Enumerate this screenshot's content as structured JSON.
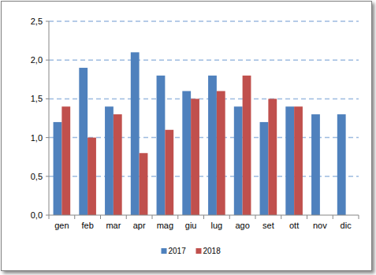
{
  "chart_data": {
    "type": "bar",
    "categories": [
      "gen",
      "feb",
      "mar",
      "apr",
      "mag",
      "giu",
      "lug",
      "ago",
      "set",
      "ott",
      "nov",
      "dic"
    ],
    "series": [
      {
        "name": "2017",
        "color": "#4f81bd",
        "values": [
          1.2,
          1.9,
          1.4,
          2.1,
          1.8,
          1.6,
          1.8,
          1.4,
          1.2,
          1.4,
          1.3,
          1.3
        ]
      },
      {
        "name": "2018",
        "color": "#c0504d",
        "values": [
          1.4,
          1.0,
          1.3,
          0.8,
          1.1,
          1.5,
          1.6,
          1.8,
          1.5,
          1.4,
          null,
          null
        ]
      }
    ],
    "ylim": [
      0,
      2.5
    ],
    "yticks": [
      {
        "value": 0,
        "label": "0,0"
      },
      {
        "value": 0.5,
        "label": "0,5"
      },
      {
        "value": 1,
        "label": "1,0"
      },
      {
        "value": 1.5,
        "label": "1,5"
      },
      {
        "value": 2,
        "label": "2,0"
      },
      {
        "value": 2.5,
        "label": "2,5"
      }
    ],
    "grid": true,
    "legend": "bottom"
  }
}
